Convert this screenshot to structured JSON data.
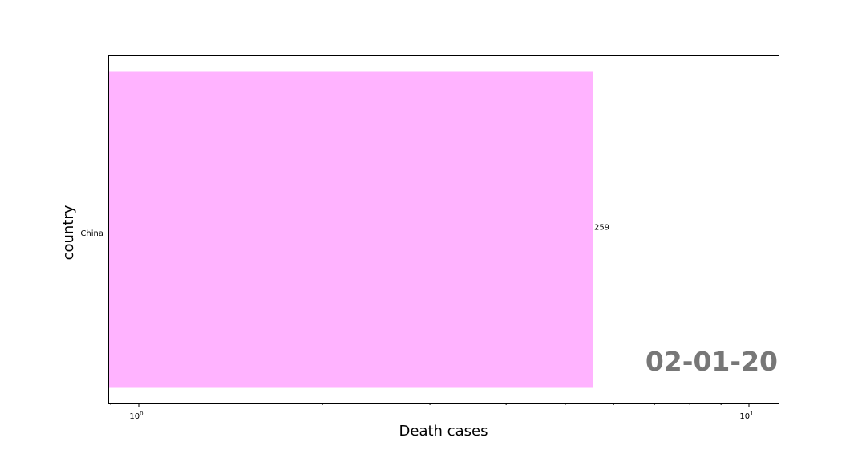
{
  "chart_data": {
    "type": "bar",
    "orientation": "horizontal",
    "categories": [
      "China"
    ],
    "values": [
      259
    ],
    "value_labels": [
      "259"
    ],
    "xlabel": "Death cases",
    "ylabel": "country",
    "x_scale": "log",
    "x_ticks": [
      {
        "value": 1,
        "base": "10",
        "exp": "0"
      },
      {
        "value": 10,
        "base": "10",
        "exp": "1"
      }
    ],
    "annotation": "02-01-20",
    "grid": false,
    "legend": "none",
    "colors": {
      "bar": "#ffb3ff",
      "annotation": "#777777",
      "axes": "#000000"
    }
  }
}
